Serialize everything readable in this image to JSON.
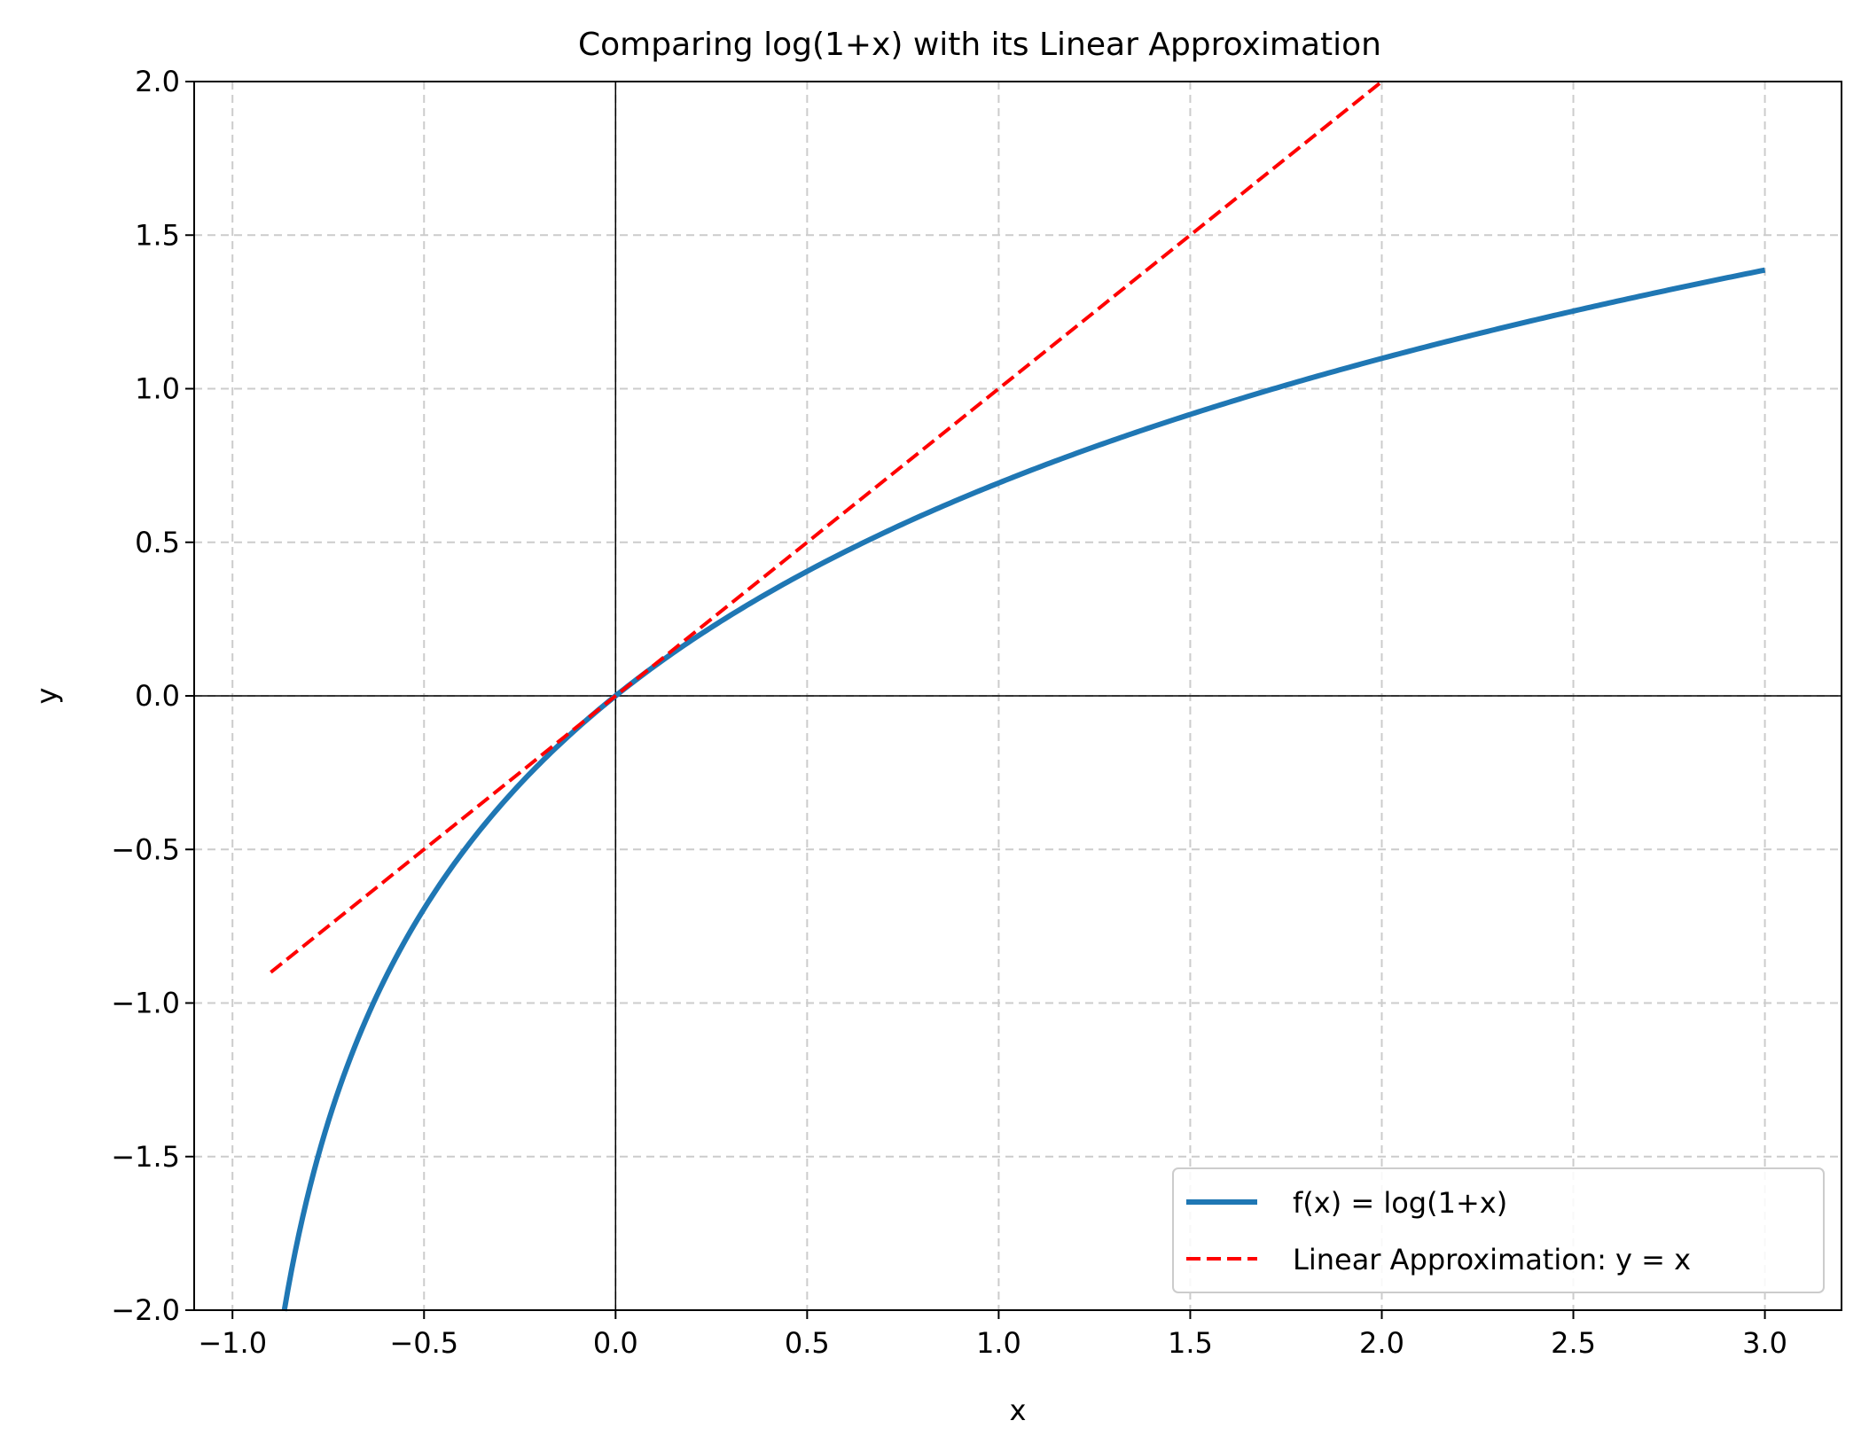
{
  "chart_data": {
    "type": "line",
    "title": "Comparing log(1+x) with its Linear Approximation",
    "xlabel": "x",
    "ylabel": "y",
    "xlim": [
      -1.1,
      3.2
    ],
    "ylim": [
      -2.0,
      2.0
    ],
    "xticks": [
      -1.0,
      -0.5,
      0.0,
      0.5,
      1.0,
      1.5,
      2.0,
      2.5,
      3.0
    ],
    "xtick_labels": [
      "−1.0",
      "−0.5",
      "0.0",
      "0.5",
      "1.0",
      "1.5",
      "2.0",
      "2.5",
      "3.0"
    ],
    "yticks": [
      -2.0,
      -1.5,
      -1.0,
      -0.5,
      0.0,
      0.5,
      1.0,
      1.5,
      2.0
    ],
    "ytick_labels": [
      "−2.0",
      "−1.5",
      "−1.0",
      "−0.5",
      "0.0",
      "0.5",
      "1.0",
      "1.5",
      "2.0"
    ],
    "grid": true,
    "grid_style": "dashed",
    "reference_lines": [
      "x=0",
      "y=0"
    ],
    "legend_position": "lower-right",
    "series": [
      {
        "name": "f(x) = log(1+x)",
        "color": "#1f77b4",
        "style": "solid",
        "x": [
          -0.865,
          -0.85,
          -0.8,
          -0.75,
          -0.7,
          -0.6,
          -0.5,
          -0.4,
          -0.3,
          -0.2,
          -0.1,
          0.0,
          0.25,
          0.5,
          0.75,
          1.0,
          1.25,
          1.5,
          1.75,
          2.0,
          2.25,
          2.5,
          2.75,
          3.0
        ],
        "y": [
          -2.0,
          -1.897,
          -1.609,
          -1.386,
          -1.204,
          -0.916,
          -0.693,
          -0.511,
          -0.357,
          -0.223,
          -0.105,
          0.0,
          0.223,
          0.405,
          0.56,
          0.693,
          0.811,
          0.916,
          1.012,
          1.099,
          1.179,
          1.253,
          1.322,
          1.386
        ]
      },
      {
        "name": "Linear Approximation: y = x",
        "color": "#ff0000",
        "style": "dashed",
        "x": [
          -0.9,
          2.0
        ],
        "y": [
          -0.9,
          2.0
        ]
      }
    ]
  }
}
